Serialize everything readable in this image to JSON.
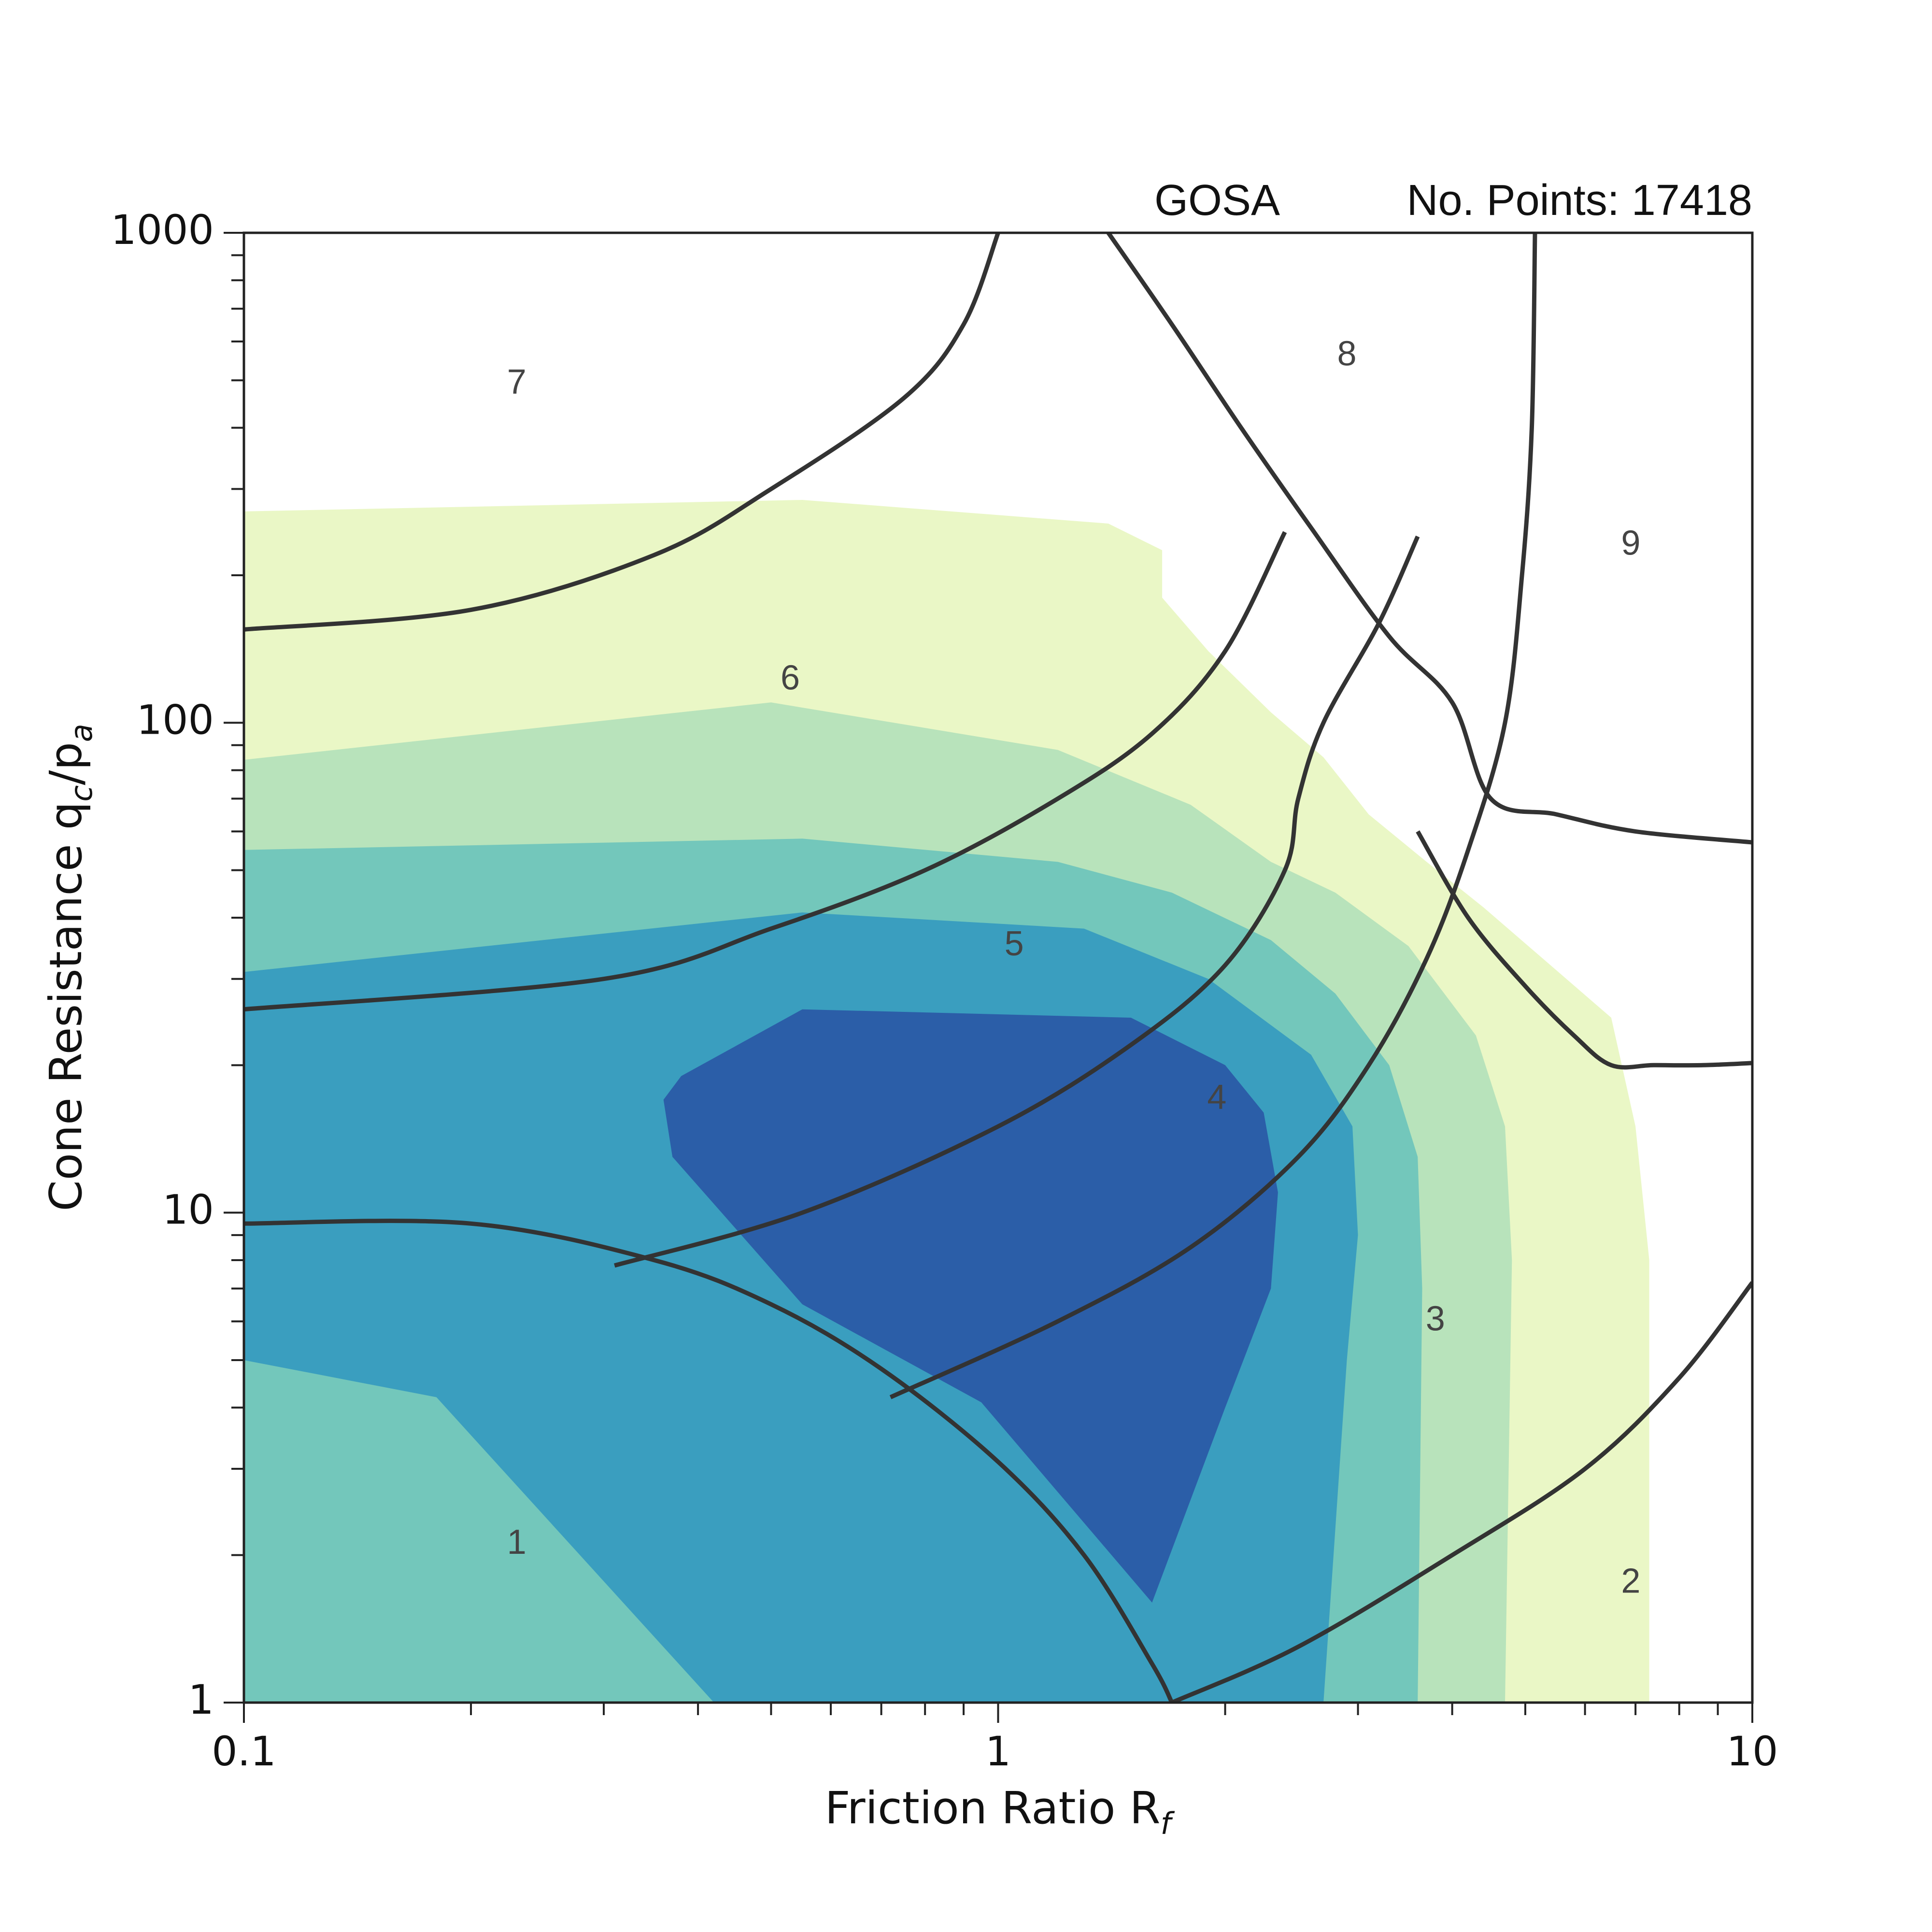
{
  "header": {
    "dataset": "GOSA",
    "points_label": "No. Points: 17418"
  },
  "chart_data": {
    "type": "contour",
    "title": "",
    "xlabel": "Friction Ratio R",
    "xlabel_sub": "f",
    "ylabel_parts": [
      "Cone Resistance q",
      "c",
      "/p",
      "a"
    ],
    "x_scale": "log",
    "y_scale": "log",
    "xlim": [
      0.1,
      10
    ],
    "ylim": [
      1,
      1000
    ],
    "x_tick_labels": [
      "0.1",
      "1",
      "10"
    ],
    "y_tick_labels": [
      "1",
      "10",
      "100",
      "1000"
    ],
    "colors": {
      "level1": "#eaf7c6",
      "level2": "#b8e3bb",
      "level3": "#73c7bb",
      "level4": "#3a9ebf",
      "level5": "#2b5ea8",
      "boundary": "#333333"
    },
    "density_levels": [
      {
        "name": "level1",
        "color": "#eaf7c6",
        "polygon": [
          [
            0.1,
            270
          ],
          [
            0.55,
            285
          ],
          [
            1.4,
            255
          ],
          [
            1.65,
            225
          ],
          [
            1.65,
            180
          ],
          [
            1.9,
            140
          ],
          [
            2.3,
            105
          ],
          [
            2.7,
            85
          ],
          [
            3.1,
            65
          ],
          [
            3.7,
            52
          ],
          [
            4.4,
            42
          ],
          [
            5.4,
            32
          ],
          [
            6.5,
            25
          ],
          [
            7.0,
            15
          ],
          [
            7.3,
            8
          ],
          [
            7.3,
            1
          ],
          [
            0.1,
            1
          ]
        ]
      },
      {
        "name": "level2",
        "color": "#b8e3bb",
        "polygon": [
          [
            0.1,
            84
          ],
          [
            0.5,
            110
          ],
          [
            1.2,
            88
          ],
          [
            1.8,
            68
          ],
          [
            2.3,
            52
          ],
          [
            2.8,
            45
          ],
          [
            3.5,
            35
          ],
          [
            4.3,
            23
          ],
          [
            4.7,
            15
          ],
          [
            4.8,
            8
          ],
          [
            4.7,
            1
          ],
          [
            0.1,
            1
          ]
        ]
      },
      {
        "name": "level3",
        "color": "#73c7bb",
        "polygon": [
          [
            0.1,
            55
          ],
          [
            0.55,
            58
          ],
          [
            1.2,
            52
          ],
          [
            1.7,
            45
          ],
          [
            2.3,
            36
          ],
          [
            2.8,
            28
          ],
          [
            3.3,
            20
          ],
          [
            3.6,
            13
          ],
          [
            3.65,
            7
          ],
          [
            3.6,
            1
          ],
          [
            0.1,
            1
          ]
        ]
      },
      {
        "name": "level4",
        "color": "#3a9ebf",
        "polygon": [
          [
            0.1,
            31
          ],
          [
            0.55,
            41
          ],
          [
            1.3,
            38
          ],
          [
            1.9,
            30
          ],
          [
            2.6,
            21
          ],
          [
            2.95,
            15
          ],
          [
            3.0,
            9
          ],
          [
            2.9,
            5
          ],
          [
            2.7,
            1
          ],
          [
            0.42,
            1
          ],
          [
            0.18,
            4.2
          ],
          [
            0.1,
            5
          ]
        ]
      },
      {
        "name": "level5",
        "color": "#2b5ea8",
        "polygon": [
          [
            0.38,
            19
          ],
          [
            0.55,
            26
          ],
          [
            1.5,
            25
          ],
          [
            2.0,
            20
          ],
          [
            2.25,
            16
          ],
          [
            2.35,
            11
          ],
          [
            2.3,
            7
          ],
          [
            2.0,
            4
          ],
          [
            1.6,
            1.6
          ],
          [
            0.95,
            4.1
          ],
          [
            0.55,
            6.5
          ],
          [
            0.37,
            13
          ],
          [
            0.36,
            17
          ]
        ]
      }
    ],
    "zone_boundaries": [
      {
        "name": "zone-1-boundary",
        "points": [
          [
            0.1,
            9.5
          ],
          [
            0.2,
            9.5
          ],
          [
            0.35,
            8
          ],
          [
            0.5,
            6.5
          ],
          [
            0.7,
            4.8
          ],
          [
            1.0,
            3.1
          ],
          [
            1.3,
            2.0
          ],
          [
            1.6,
            1.2
          ],
          [
            1.7,
            1
          ]
        ]
      },
      {
        "name": "zone-2-boundary",
        "points": [
          [
            1.7,
            1
          ],
          [
            2.5,
            1.3
          ],
          [
            4.0,
            2.0
          ],
          [
            6.0,
            3.0
          ],
          [
            8.0,
            4.6
          ],
          [
            10,
            7.2
          ]
        ]
      },
      {
        "name": "zone-4-3-boundary",
        "points": [
          [
            0.72,
            4.2
          ],
          [
            1.2,
            6
          ],
          [
            1.8,
            8.5
          ],
          [
            2.5,
            13
          ],
          [
            3.1,
            20
          ],
          [
            3.7,
            33
          ],
          [
            4.2,
            55
          ],
          [
            4.7,
            100
          ],
          [
            4.95,
            200
          ],
          [
            5.1,
            400
          ],
          [
            5.15,
            1000
          ]
        ]
      },
      {
        "name": "zone-5-4-boundary",
        "points": [
          [
            0.31,
            7.8
          ],
          [
            0.55,
            10
          ],
          [
            1.0,
            15
          ],
          [
            1.5,
            22
          ],
          [
            2.0,
            32
          ],
          [
            2.4,
            50
          ],
          [
            2.5,
            70
          ],
          [
            2.7,
            100
          ],
          [
            3.2,
            160
          ],
          [
            3.6,
            240
          ]
        ]
      },
      {
        "name": "zone-6-5-boundary",
        "points": [
          [
            0.1,
            26
          ],
          [
            0.3,
            30
          ],
          [
            0.5,
            38
          ],
          [
            0.8,
            50
          ],
          [
            1.2,
            70
          ],
          [
            1.6,
            95
          ],
          [
            2.0,
            140
          ],
          [
            2.4,
            245
          ]
        ]
      },
      {
        "name": "zone-3-2-boundary",
        "points": [
          [
            3.6,
            60
          ],
          [
            4.2,
            40
          ],
          [
            5.0,
            29
          ],
          [
            5.8,
            23
          ],
          [
            6.5,
            20
          ],
          [
            7.4,
            20
          ],
          [
            8.6,
            20
          ],
          [
            10,
            20.2
          ]
        ]
      },
      {
        "name": "zone-7-6-boundary",
        "points": [
          [
            0.1,
            155
          ],
          [
            0.2,
            170
          ],
          [
            0.35,
            220
          ],
          [
            0.5,
            300
          ],
          [
            0.75,
            460
          ],
          [
            0.9,
            650
          ],
          [
            1.0,
            1000
          ]
        ]
      },
      {
        "name": "zone-8-boundary",
        "points": [
          [
            1.4,
            1000
          ],
          [
            1.7,
            650
          ],
          [
            2.1,
            400
          ],
          [
            2.6,
            250
          ],
          [
            3.3,
            150
          ],
          [
            4.0,
            110
          ],
          [
            4.5,
            70
          ],
          [
            5.5,
            65
          ],
          [
            7.0,
            60
          ],
          [
            10,
            57
          ]
        ]
      }
    ],
    "zone_labels": [
      {
        "text": "1",
        "x": 0.23,
        "y": 2.1
      },
      {
        "text": "2",
        "x": 6.9,
        "y": 1.75
      },
      {
        "text": "3",
        "x": 3.8,
        "y": 6.0
      },
      {
        "text": "4",
        "x": 1.95,
        "y": 17
      },
      {
        "text": "5",
        "x": 1.05,
        "y": 35
      },
      {
        "text": "6",
        "x": 0.53,
        "y": 122
      },
      {
        "text": "7",
        "x": 0.23,
        "y": 490
      },
      {
        "text": "8",
        "x": 2.9,
        "y": 560
      },
      {
        "text": "9",
        "x": 6.9,
        "y": 230
      }
    ]
  }
}
